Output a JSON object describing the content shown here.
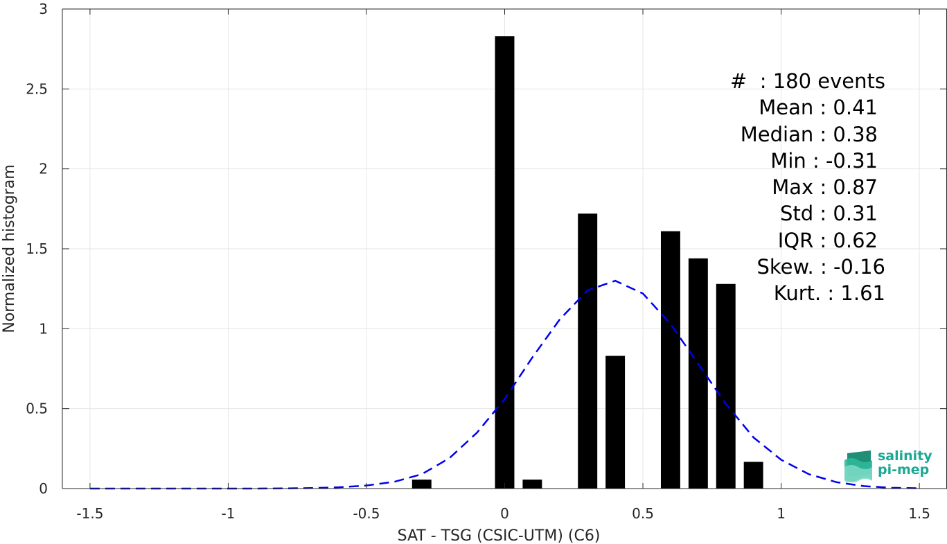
{
  "chart_data": {
    "type": "bar",
    "xlabel": "SAT - TSG (CSIC-UTM) (C6)",
    "ylabel": "Normalized histogram",
    "xlim": [
      -1.6,
      1.6
    ],
    "ylim": [
      0,
      3
    ],
    "xticks": [
      "-1.5",
      "-1",
      "-0.5",
      "0",
      "0.5",
      "1",
      "1.5"
    ],
    "yticks": [
      "0",
      "0.5",
      "1",
      "1.5",
      "2",
      "2.5",
      "3"
    ],
    "grid": true,
    "bar_width": 0.07,
    "bars": [
      {
        "x": -0.3,
        "value": 0.056
      },
      {
        "x": 0.0,
        "value": 2.83
      },
      {
        "x": 0.1,
        "value": 0.056
      },
      {
        "x": 0.3,
        "value": 1.72
      },
      {
        "x": 0.4,
        "value": 0.83
      },
      {
        "x": 0.6,
        "value": 1.61
      },
      {
        "x": 0.7,
        "value": 1.44
      },
      {
        "x": 0.8,
        "value": 1.28
      },
      {
        "x": 0.9,
        "value": 0.167
      }
    ],
    "fit_curve": {
      "style": "dashed",
      "color": "#0000ee",
      "x": [
        -1.5,
        -1.4,
        -1.3,
        -1.2,
        -1.1,
        -1.0,
        -0.9,
        -0.8,
        -0.7,
        -0.6,
        -0.5,
        -0.4,
        -0.3,
        -0.2,
        -0.1,
        0.0,
        0.1,
        0.2,
        0.3,
        0.4,
        0.5,
        0.6,
        0.7,
        0.8,
        0.9,
        1.0,
        1.1,
        1.2,
        1.3,
        1.4,
        1.5
      ],
      "y": [
        0.0,
        0.0,
        0.0,
        0.0,
        0.0,
        0.0,
        0.0,
        0.001,
        0.003,
        0.008,
        0.019,
        0.042,
        0.09,
        0.19,
        0.35,
        0.56,
        0.82,
        1.06,
        1.24,
        1.3,
        1.22,
        1.03,
        0.78,
        0.53,
        0.32,
        0.18,
        0.09,
        0.04,
        0.015,
        0.005,
        0.002
      ]
    },
    "color": "#000000"
  },
  "stats": {
    "events": "#  : 180 events",
    "mean": "Mean : 0.41",
    "median": "Median : 0.38",
    "min": "Min : -0.31",
    "max": "Max : 0.87",
    "std": "Std : 0.31",
    "iqr": "IQR : 0.62",
    "skew": "Skew. : -0.16",
    "kurt": "Kurt. : 1.61"
  },
  "logo": {
    "line1": "salinity",
    "line2": "pi-mep"
  }
}
